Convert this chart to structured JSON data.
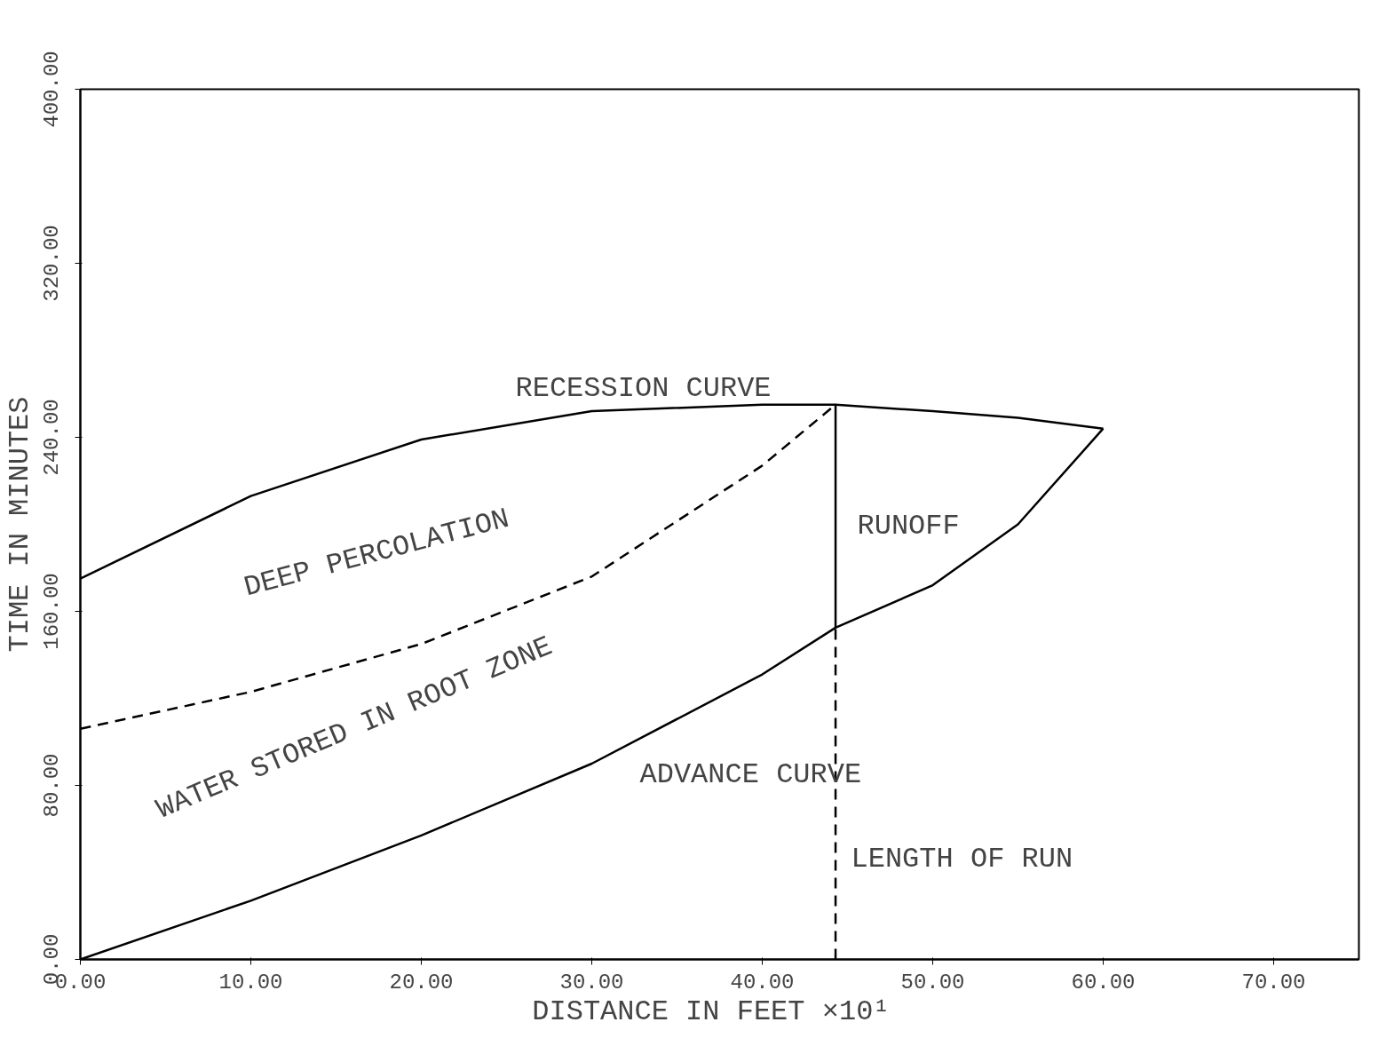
{
  "chart_data": {
    "type": "line",
    "xlabel": "DISTANCE IN FEET  ×10¹",
    "ylabel": "TIME IN MINUTES",
    "xlim": [
      0,
      75
    ],
    "ylim": [
      0,
      400
    ],
    "xticks": [
      {
        "value": 0,
        "label": "0.00"
      },
      {
        "value": 10,
        "label": "10.00"
      },
      {
        "value": 20,
        "label": "20.00"
      },
      {
        "value": 30,
        "label": "30.00"
      },
      {
        "value": 40,
        "label": "40.00"
      },
      {
        "value": 50,
        "label": "50.00"
      },
      {
        "value": 60,
        "label": "60.00"
      },
      {
        "value": 70,
        "label": "70.00"
      }
    ],
    "yticks": [
      {
        "value": 0,
        "label": "0.00"
      },
      {
        "value": 80,
        "label": "80.00"
      },
      {
        "value": 160,
        "label": "160.00"
      },
      {
        "value": 240,
        "label": "240.00"
      },
      {
        "value": 320,
        "label": "320.00"
      },
      {
        "value": 400,
        "label": "400.00"
      }
    ],
    "grid": false,
    "marker": "none",
    "series": [
      {
        "color": "#000000",
        "line_style": "solid",
        "x": [
          0,
          10,
          20,
          30,
          40,
          44.3,
          50,
          55,
          60
        ],
        "values": [
          175,
          213,
          239,
          252,
          255,
          255,
          252,
          249,
          244
        ]
      },
      {
        "color": "#000000",
        "line_style": "solid",
        "x": [
          0,
          10,
          20,
          30,
          40,
          44.3,
          50,
          55,
          60
        ],
        "values": [
          0,
          27,
          57,
          90,
          131,
          152.5,
          172,
          200,
          244
        ]
      },
      {
        "color": "#000000",
        "line_style": "dashed",
        "x": [
          0,
          10,
          20,
          30,
          40,
          44.3
        ],
        "values": [
          106,
          123,
          145,
          176,
          227,
          255
        ]
      },
      {
        "color": "#000000",
        "line_style": "solid",
        "x": [
          44.3,
          44.3
        ],
        "values": [
          152.5,
          255
        ]
      },
      {
        "color": "#000000",
        "line_style": "dashed",
        "x": [
          44.3,
          44.3
        ],
        "values": [
          0,
          152.5
        ]
      }
    ],
    "annotations": [
      "RECESSION CURVE",
      "DEEP PERCOLATION",
      "WATER STORED IN ROOT ZONE",
      "RUNOFF",
      "ADVANCE CURVE",
      "LENGTH OF RUN"
    ]
  }
}
